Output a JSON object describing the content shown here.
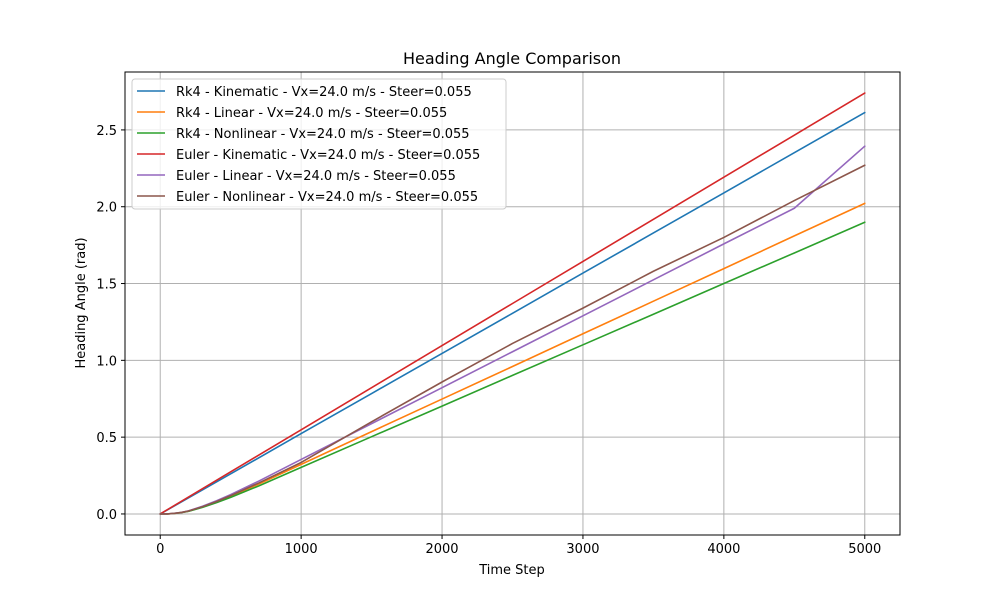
{
  "chart_data": {
    "type": "line",
    "title": "Heading Angle Comparison",
    "xlabel": "Time Step",
    "ylabel": "Heading Angle (rad)",
    "xlim": [
      -250,
      5250
    ],
    "ylim": [
      -0.137,
      2.877
    ],
    "xticks": [
      0,
      1000,
      2000,
      3000,
      4000,
      5000
    ],
    "xtick_labels": [
      "0",
      "1000",
      "2000",
      "3000",
      "4000",
      "5000"
    ],
    "yticks": [
      0.0,
      0.5,
      1.0,
      1.5,
      2.0,
      2.5
    ],
    "ytick_labels": [
      "0.0",
      "0.5",
      "1.0",
      "1.5",
      "2.0",
      "2.5"
    ],
    "grid": true,
    "legend_position": "upper-left",
    "series": [
      {
        "name": "Rk4 - Kinematic - Vx=24.0 m/s - Steer=0.055",
        "color": "#1f77b4",
        "x": [
          0,
          500,
          1000,
          1500,
          2000,
          2500,
          3000,
          3500,
          4000,
          4500,
          5000
        ],
        "y": [
          0.0,
          0.261,
          0.523,
          0.784,
          1.045,
          1.306,
          1.568,
          1.829,
          2.09,
          2.352,
          2.613
        ]
      },
      {
        "name": "Rk4 - Linear - Vx=24.0 m/s - Steer=0.055",
        "color": "#ff7f0e",
        "x": [
          0,
          50,
          100,
          150,
          200,
          300,
          400,
          500,
          700,
          1000,
          1500,
          2000,
          2500,
          3000,
          3500,
          4000,
          4500,
          5000
        ],
        "y": [
          0.0,
          0.0,
          0.003,
          0.009,
          0.018,
          0.045,
          0.078,
          0.115,
          0.195,
          0.323,
          0.536,
          0.748,
          0.96,
          1.173,
          1.385,
          1.597,
          1.81,
          2.022
        ]
      },
      {
        "name": "Rk4 - Nonlinear - Vx=24.0 m/s - Steer=0.055",
        "color": "#2ca02c",
        "x": [
          0,
          50,
          100,
          150,
          200,
          300,
          400,
          500,
          700,
          1000,
          1500,
          2000,
          2500,
          3000,
          3500,
          4000,
          4500,
          5000
        ],
        "y": [
          0.0,
          0.0,
          0.003,
          0.009,
          0.017,
          0.043,
          0.074,
          0.108,
          0.183,
          0.303,
          0.503,
          0.702,
          0.902,
          1.101,
          1.3,
          1.5,
          1.699,
          1.899
        ]
      },
      {
        "name": "Euler - Kinematic - Vx=24.0 m/s - Steer=0.055",
        "color": "#d62728",
        "x": [
          0,
          500,
          1000,
          1500,
          2000,
          2500,
          3000,
          3500,
          4000,
          4500,
          5000
        ],
        "y": [
          0.0,
          0.274,
          0.548,
          0.822,
          1.096,
          1.37,
          1.644,
          1.918,
          2.192,
          2.466,
          2.74
        ]
      },
      {
        "name": "Euler - Linear - Vx=24.0 m/s - Steer=0.055",
        "color": "#9467bd",
        "x": [
          0,
          50,
          100,
          150,
          200,
          300,
          400,
          500,
          700,
          1000,
          1500,
          2000,
          2500,
          3000,
          3500,
          4000,
          4500,
          5000
        ],
        "y": [
          0.0,
          0.0,
          0.004,
          0.01,
          0.02,
          0.05,
          0.086,
          0.126,
          0.214,
          0.355,
          0.588,
          0.822,
          1.056,
          1.29,
          1.524,
          1.758,
          1.99,
          2.394
        ]
      },
      {
        "name": "Euler - Nonlinear - Vx=24.0 m/s - Steer=0.055",
        "color": "#8c564b",
        "x": [
          0,
          50,
          100,
          150,
          200,
          300,
          400,
          500,
          700,
          1000,
          1500,
          2000,
          2500,
          3000,
          3500,
          4000,
          4500,
          5000
        ],
        "y": [
          0.0,
          0.0,
          0.004,
          0.01,
          0.019,
          0.047,
          0.081,
          0.119,
          0.202,
          0.335,
          0.6,
          0.859,
          1.11,
          1.34,
          1.58,
          1.8,
          2.04,
          2.27
        ]
      }
    ]
  }
}
